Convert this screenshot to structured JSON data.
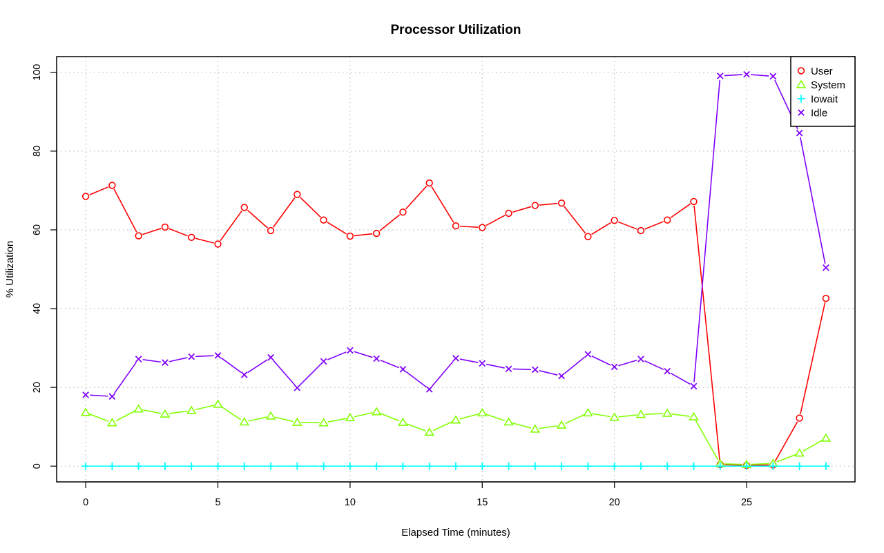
{
  "chart_data": {
    "type": "line",
    "title": "Processor Utilization",
    "xlabel": "Elapsed Time (minutes)",
    "ylabel": "% Utilization",
    "xlim": [
      -1.1,
      29.1
    ],
    "ylim": [
      -4,
      104
    ],
    "xticks": [
      0,
      5,
      10,
      15,
      20,
      25
    ],
    "yticks": [
      0,
      20,
      40,
      60,
      80,
      100
    ],
    "grid": true,
    "legend_position": "top-right",
    "x": [
      0,
      1,
      2,
      3,
      4,
      5,
      6,
      7,
      8,
      9,
      10,
      11,
      12,
      13,
      14,
      15,
      16,
      17,
      18,
      19,
      20,
      21,
      22,
      23,
      24,
      25,
      26,
      27,
      28
    ],
    "series": [
      {
        "name": "User",
        "color": "#ff0000",
        "marker": "circle",
        "values": [
          68.5,
          71.3,
          58.5,
          60.7,
          58.1,
          56.4,
          65.7,
          59.8,
          69.0,
          62.5,
          58.4,
          59.1,
          64.5,
          71.9,
          61.0,
          60.6,
          64.2,
          66.2,
          66.8,
          58.3,
          62.4,
          59.8,
          62.5,
          67.2,
          0.4,
          0.2,
          0.3,
          12.2,
          42.6
        ]
      },
      {
        "name": "System",
        "color": "#80ff00",
        "marker": "triangle",
        "values": [
          13.6,
          11.0,
          14.5,
          13.2,
          14.1,
          15.7,
          11.2,
          12.7,
          11.1,
          11.0,
          12.3,
          13.8,
          11.1,
          8.6,
          11.7,
          13.5,
          11.2,
          9.4,
          10.4,
          13.5,
          12.4,
          13.1,
          13.4,
          12.5,
          0.6,
          0.4,
          0.7,
          3.3,
          7.1
        ]
      },
      {
        "name": "Iowait",
        "color": "#00ffff",
        "marker": "plus",
        "values": [
          0,
          0,
          0,
          0,
          0,
          0,
          0,
          0,
          0,
          0,
          0,
          0,
          0,
          0,
          0,
          0,
          0,
          0,
          0,
          0,
          0,
          0,
          0,
          0,
          0,
          0,
          0,
          0,
          0
        ]
      },
      {
        "name": "Idle",
        "color": "#8000ff",
        "marker": "cross",
        "values": [
          18.1,
          17.7,
          27.2,
          26.3,
          27.8,
          28.1,
          23.2,
          27.6,
          19.9,
          26.6,
          29.4,
          27.3,
          24.6,
          19.5,
          27.4,
          26.1,
          24.7,
          24.5,
          22.9,
          28.4,
          25.2,
          27.2,
          24.1,
          20.3,
          99.1,
          99.5,
          99.0,
          84.6,
          50.4
        ]
      }
    ]
  }
}
